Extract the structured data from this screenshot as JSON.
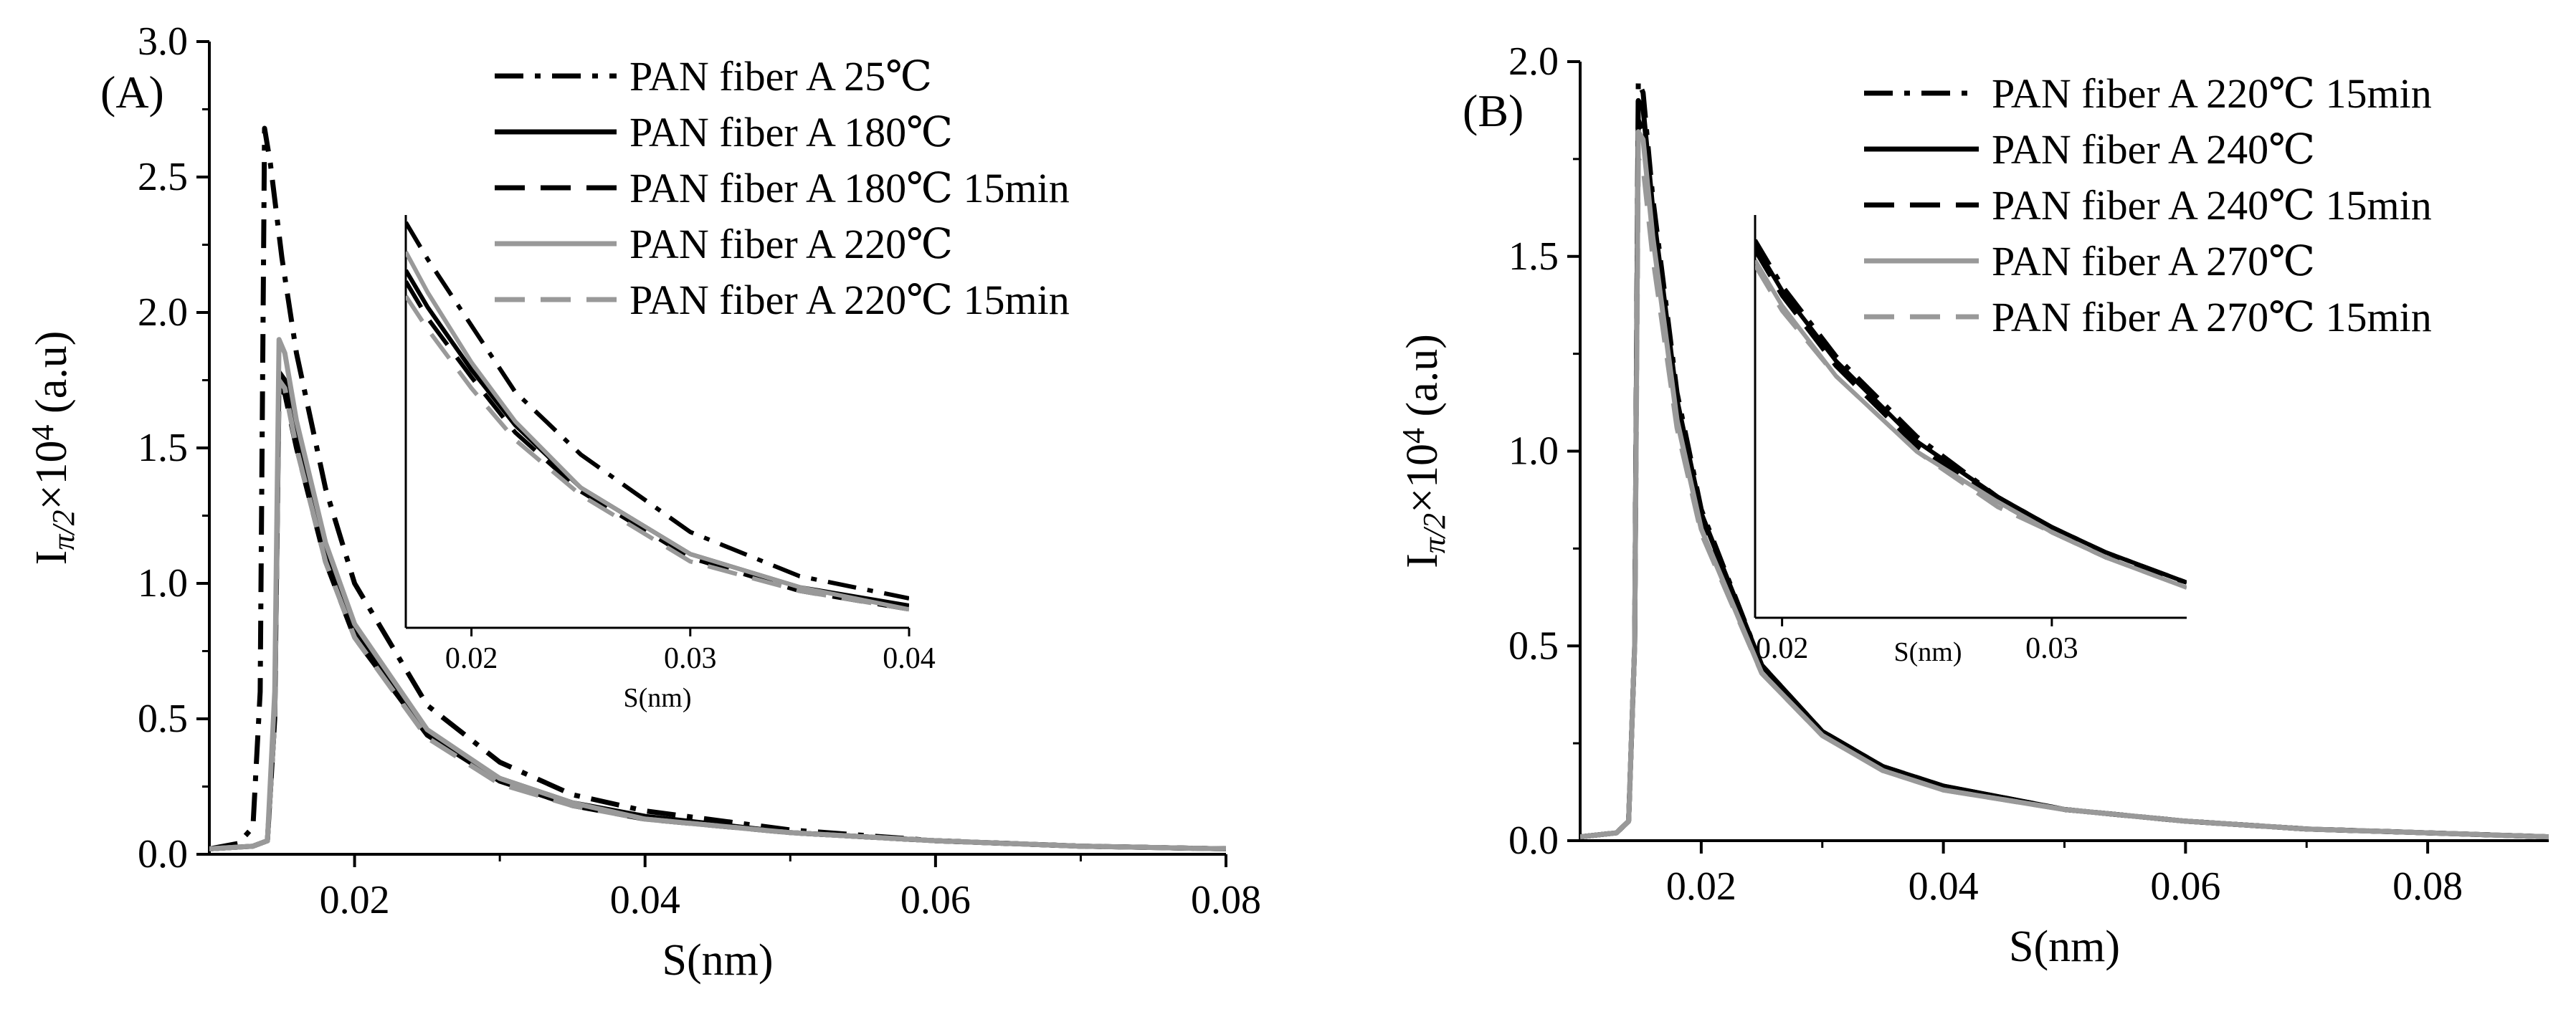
{
  "chart_data": [
    {
      "type": "line",
      "panel_label": "(A)",
      "xlabel": "S(nm)",
      "ylabel": {
        "base": "I",
        "subscript": "π/2",
        "mid": "×10",
        "superscript": "4",
        "unit": " (a.u)"
      },
      "xlim": [
        0.01,
        0.08
      ],
      "ylim": [
        0.0,
        3.0
      ],
      "x_ticks": [
        0.02,
        0.04,
        0.06,
        0.08
      ],
      "x_tick_labels": [
        "0.02",
        "0.04",
        "0.06",
        "0.08"
      ],
      "y_ticks": [
        0.0,
        0.5,
        1.0,
        1.5,
        2.0,
        2.5,
        3.0
      ],
      "y_tick_labels": [
        "0.0",
        "0.5",
        "1.0",
        "1.5",
        "2.0",
        "2.5",
        "3.0"
      ],
      "legend_position": "top-right",
      "series": [
        {
          "name": "PAN fiber A 25℃",
          "color": "#000000",
          "style": "dashdot",
          "x": [
            0.01,
            0.012,
            0.013,
            0.0135,
            0.0138,
            0.0142,
            0.015,
            0.016,
            0.018,
            0.02,
            0.025,
            0.03,
            0.035,
            0.04,
            0.05,
            0.06,
            0.07,
            0.08
          ],
          "y": [
            0.02,
            0.04,
            0.1,
            0.6,
            2.68,
            2.55,
            2.2,
            1.85,
            1.35,
            1.0,
            0.55,
            0.34,
            0.22,
            0.16,
            0.09,
            0.05,
            0.03,
            0.02
          ]
        },
        {
          "name": "PAN fiber A 180℃",
          "color": "#000000",
          "style": "solid",
          "x": [
            0.01,
            0.013,
            0.014,
            0.0145,
            0.0148,
            0.0152,
            0.016,
            0.018,
            0.02,
            0.025,
            0.03,
            0.035,
            0.04,
            0.05,
            0.06,
            0.07,
            0.08
          ],
          "y": [
            0.02,
            0.03,
            0.05,
            0.5,
            1.78,
            1.75,
            1.55,
            1.1,
            0.82,
            0.45,
            0.28,
            0.19,
            0.14,
            0.08,
            0.05,
            0.03,
            0.02
          ]
        },
        {
          "name": "PAN fiber A 180℃ 15min",
          "color": "#000000",
          "style": "dashed",
          "x": [
            0.01,
            0.013,
            0.014,
            0.0145,
            0.0148,
            0.0152,
            0.016,
            0.018,
            0.02,
            0.025,
            0.03,
            0.035,
            0.04,
            0.05,
            0.06,
            0.07,
            0.08
          ],
          "y": [
            0.02,
            0.03,
            0.05,
            0.5,
            1.72,
            1.7,
            1.5,
            1.08,
            0.8,
            0.44,
            0.27,
            0.18,
            0.13,
            0.08,
            0.05,
            0.03,
            0.02
          ]
        },
        {
          "name": "PAN fiber A 220℃",
          "color": "#999999",
          "style": "solid",
          "x": [
            0.01,
            0.013,
            0.014,
            0.0145,
            0.0148,
            0.0152,
            0.016,
            0.018,
            0.02,
            0.025,
            0.03,
            0.035,
            0.04,
            0.05,
            0.06,
            0.07,
            0.08
          ],
          "y": [
            0.02,
            0.03,
            0.05,
            0.6,
            1.9,
            1.85,
            1.6,
            1.15,
            0.85,
            0.46,
            0.28,
            0.19,
            0.13,
            0.08,
            0.05,
            0.03,
            0.02
          ]
        },
        {
          "name": "PAN fiber A 220℃ 15min",
          "color": "#999999",
          "style": "dashed",
          "x": [
            0.01,
            0.013,
            0.014,
            0.0145,
            0.0148,
            0.0152,
            0.016,
            0.018,
            0.02,
            0.025,
            0.03,
            0.035,
            0.04,
            0.05,
            0.06,
            0.07,
            0.08
          ],
          "y": [
            0.02,
            0.03,
            0.05,
            0.5,
            1.75,
            1.72,
            1.5,
            1.08,
            0.8,
            0.43,
            0.26,
            0.18,
            0.13,
            0.08,
            0.05,
            0.03,
            0.02
          ]
        }
      ],
      "inset": {
        "xlabel": "S(nm)",
        "xlim": [
          0.017,
          0.04
        ],
        "ylim": [
          0.08,
          1.2
        ],
        "x_ticks": [
          0.02,
          0.03,
          0.04
        ],
        "x_tick_labels": [
          "0.02",
          "0.03",
          "0.04"
        ],
        "series": [
          {
            "x": [
              0.017,
              0.018,
              0.02,
              0.022,
              0.025,
              0.03,
              0.035,
              0.04
            ],
            "y": [
              1.18,
              1.08,
              0.9,
              0.72,
              0.55,
              0.34,
              0.22,
              0.16
            ]
          },
          {
            "x": [
              0.017,
              0.018,
              0.02,
              0.022,
              0.025,
              0.03,
              0.035,
              0.04
            ],
            "y": [
              1.05,
              0.95,
              0.78,
              0.63,
              0.46,
              0.28,
              0.19,
              0.14
            ]
          },
          {
            "x": [
              0.017,
              0.018,
              0.02,
              0.022,
              0.025,
              0.03,
              0.035,
              0.04
            ],
            "y": [
              1.02,
              0.92,
              0.76,
              0.61,
              0.45,
              0.27,
              0.18,
              0.13
            ]
          },
          {
            "x": [
              0.017,
              0.018,
              0.02,
              0.022,
              0.025,
              0.03,
              0.035,
              0.04
            ],
            "y": [
              1.1,
              0.99,
              0.8,
              0.64,
              0.46,
              0.28,
              0.19,
              0.13
            ]
          },
          {
            "x": [
              0.017,
              0.018,
              0.02,
              0.022,
              0.025,
              0.03,
              0.035,
              0.04
            ],
            "y": [
              0.98,
              0.89,
              0.73,
              0.59,
              0.44,
              0.26,
              0.18,
              0.13
            ]
          }
        ]
      }
    },
    {
      "type": "line",
      "panel_label": "(B)",
      "xlabel": "S(nm)",
      "ylabel": {
        "base": "I",
        "subscript": "π/2",
        "mid": "×10",
        "superscript": "4",
        "unit": " (a.u)"
      },
      "xlim": [
        0.01,
        0.09
      ],
      "ylim": [
        0.0,
        2.0
      ],
      "x_ticks": [
        0.02,
        0.04,
        0.06,
        0.08
      ],
      "x_tick_labels": [
        "0.02",
        "0.04",
        "0.06",
        "0.08"
      ],
      "y_ticks": [
        0.0,
        0.5,
        1.0,
        1.5,
        2.0
      ],
      "y_tick_labels": [
        "0.0",
        "0.5",
        "1.0",
        "1.5",
        "2.0"
      ],
      "legend_position": "top-right",
      "series": [
        {
          "name": "PAN fiber A 220℃ 15min",
          "color": "#000000",
          "style": "dashdot",
          "x": [
            0.01,
            0.013,
            0.014,
            0.0145,
            0.0148,
            0.0152,
            0.016,
            0.018,
            0.02,
            0.025,
            0.03,
            0.035,
            0.04,
            0.05,
            0.06,
            0.07,
            0.08,
            0.09
          ],
          "y": [
            0.01,
            0.02,
            0.05,
            0.5,
            1.95,
            1.92,
            1.65,
            1.15,
            0.85,
            0.45,
            0.28,
            0.19,
            0.14,
            0.08,
            0.05,
            0.03,
            0.02,
            0.01
          ]
        },
        {
          "name": "PAN fiber A 240℃",
          "color": "#000000",
          "style": "solid",
          "x": [
            0.01,
            0.013,
            0.014,
            0.0145,
            0.0148,
            0.0152,
            0.016,
            0.018,
            0.02,
            0.025,
            0.03,
            0.035,
            0.04,
            0.05,
            0.06,
            0.07,
            0.08,
            0.09
          ],
          "y": [
            0.01,
            0.02,
            0.05,
            0.5,
            1.9,
            1.88,
            1.62,
            1.13,
            0.84,
            0.45,
            0.28,
            0.19,
            0.14,
            0.08,
            0.05,
            0.03,
            0.02,
            0.01
          ]
        },
        {
          "name": "PAN fiber A 240℃ 15min",
          "color": "#000000",
          "style": "dashed",
          "x": [
            0.01,
            0.013,
            0.014,
            0.0145,
            0.0148,
            0.0152,
            0.016,
            0.018,
            0.02,
            0.025,
            0.03,
            0.035,
            0.04,
            0.05,
            0.06,
            0.07,
            0.08,
            0.09
          ],
          "y": [
            0.01,
            0.02,
            0.05,
            0.5,
            1.85,
            1.82,
            1.58,
            1.1,
            0.82,
            0.44,
            0.27,
            0.19,
            0.14,
            0.08,
            0.05,
            0.03,
            0.02,
            0.01
          ]
        },
        {
          "name": "PAN fiber A 270℃",
          "color": "#999999",
          "style": "solid",
          "x": [
            0.01,
            0.013,
            0.014,
            0.0145,
            0.0148,
            0.0152,
            0.016,
            0.018,
            0.02,
            0.025,
            0.03,
            0.035,
            0.04,
            0.05,
            0.06,
            0.07,
            0.08,
            0.09
          ],
          "y": [
            0.01,
            0.02,
            0.05,
            0.5,
            1.82,
            1.8,
            1.55,
            1.08,
            0.8,
            0.43,
            0.27,
            0.18,
            0.13,
            0.08,
            0.05,
            0.03,
            0.02,
            0.01
          ]
        },
        {
          "name": "PAN fiber A 270℃ 15min",
          "color": "#999999",
          "style": "dashed",
          "x": [
            0.01,
            0.013,
            0.014,
            0.0145,
            0.0148,
            0.0152,
            0.016,
            0.018,
            0.02,
            0.025,
            0.03,
            0.035,
            0.04,
            0.05,
            0.06,
            0.07,
            0.08,
            0.09
          ],
          "y": [
            0.01,
            0.02,
            0.05,
            0.5,
            1.75,
            1.73,
            1.5,
            1.06,
            0.79,
            0.43,
            0.27,
            0.18,
            0.13,
            0.08,
            0.05,
            0.03,
            0.02,
            0.01
          ]
        }
      ],
      "inset": {
        "xlabel": "S(nm)",
        "xlim": [
          0.019,
          0.035
        ],
        "ylim": [
          0.2,
          1.0
        ],
        "x_ticks": [
          0.02,
          0.03
        ],
        "x_tick_labels": [
          "0.02",
          "0.03"
        ],
        "series": [
          {
            "x": [
              0.019,
              0.02,
              0.022,
              0.025,
              0.028,
              0.03,
              0.032,
              0.035
            ],
            "y": [
              0.95,
              0.86,
              0.72,
              0.56,
              0.44,
              0.38,
              0.33,
              0.27
            ]
          },
          {
            "x": [
              0.019,
              0.02,
              0.022,
              0.025,
              0.028,
              0.03,
              0.032,
              0.035
            ],
            "y": [
              0.94,
              0.85,
              0.71,
              0.55,
              0.44,
              0.38,
              0.33,
              0.27
            ]
          },
          {
            "x": [
              0.019,
              0.02,
              0.022,
              0.025,
              0.028,
              0.03,
              0.032,
              0.035
            ],
            "y": [
              0.93,
              0.84,
              0.7,
              0.54,
              0.43,
              0.37,
              0.32,
              0.27
            ]
          },
          {
            "x": [
              0.019,
              0.02,
              0.022,
              0.025,
              0.028,
              0.03,
              0.032,
              0.035
            ],
            "y": [
              0.91,
              0.82,
              0.68,
              0.53,
              0.43,
              0.37,
              0.32,
              0.26
            ]
          },
          {
            "x": [
              0.019,
              0.02,
              0.022,
              0.025,
              0.028,
              0.03,
              0.032,
              0.035
            ],
            "y": [
              0.9,
              0.81,
              0.68,
              0.53,
              0.42,
              0.37,
              0.32,
              0.26
            ]
          }
        ]
      }
    }
  ]
}
